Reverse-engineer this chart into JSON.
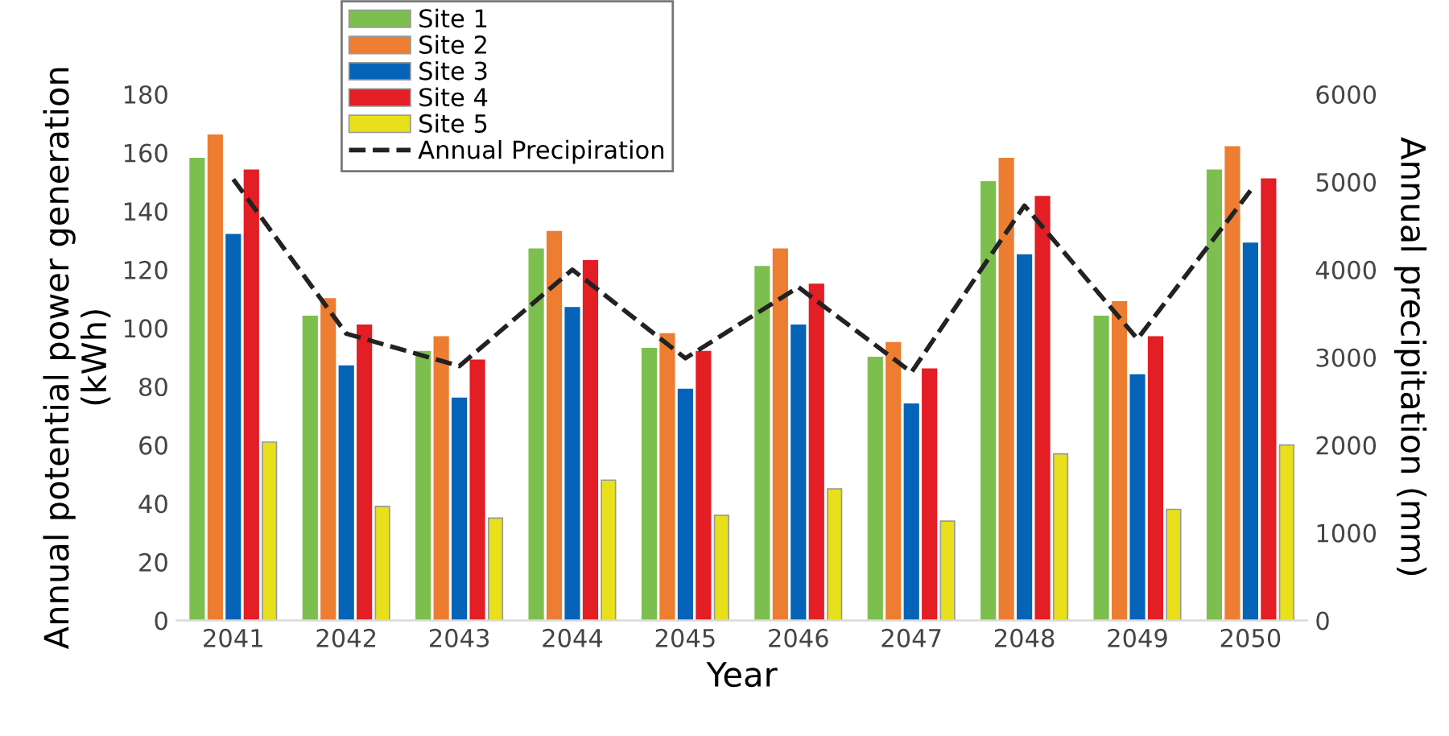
{
  "chart_data": {
    "type": "bar",
    "xlabel": "Year",
    "ylabel": "Annual potential power generation\n(kWh)",
    "y2label": "Annual precipitation (mm)",
    "categories": [
      "2041",
      "2042",
      "2043",
      "2044",
      "2045",
      "2046",
      "2047",
      "2048",
      "2049",
      "2050"
    ],
    "series": [
      {
        "name": "Site 1",
        "color": "#7dbf4f",
        "values": [
          158,
          104,
          92,
          127,
          93,
          121,
          90,
          150,
          104,
          154
        ]
      },
      {
        "name": "Site 2",
        "color": "#ed7d31",
        "values": [
          166,
          110,
          97,
          133,
          98,
          127,
          95,
          158,
          109,
          162
        ]
      },
      {
        "name": "Site 3",
        "color": "#0563b8",
        "values": [
          132,
          87,
          76,
          107,
          79,
          101,
          74,
          125,
          84,
          129
        ]
      },
      {
        "name": "Site 4",
        "color": "#e31e24",
        "values": [
          154,
          101,
          89,
          123,
          92,
          115,
          86,
          145,
          97,
          151
        ]
      },
      {
        "name": "Site 5",
        "color": "#e8e01a",
        "values": [
          61,
          39,
          35,
          48,
          36,
          45,
          34,
          57,
          38,
          60
        ]
      },
      {
        "name": "Annual Precipiration",
        "type": "line",
        "axis": "y2",
        "color": "#222222",
        "line_style": "dashed",
        "values": [
          5030,
          3270,
          2900,
          4000,
          2990,
          3800,
          2830,
          4730,
          3210,
          4900
        ]
      }
    ],
    "ylim": [
      0,
      180
    ],
    "yticks": [
      0,
      20,
      40,
      60,
      80,
      100,
      120,
      140,
      160,
      180
    ],
    "y2lim": [
      0,
      6000
    ],
    "y2ticks": [
      0,
      1000,
      2000,
      3000,
      4000,
      5000,
      6000
    ],
    "grid": false,
    "legend": "top left"
  }
}
